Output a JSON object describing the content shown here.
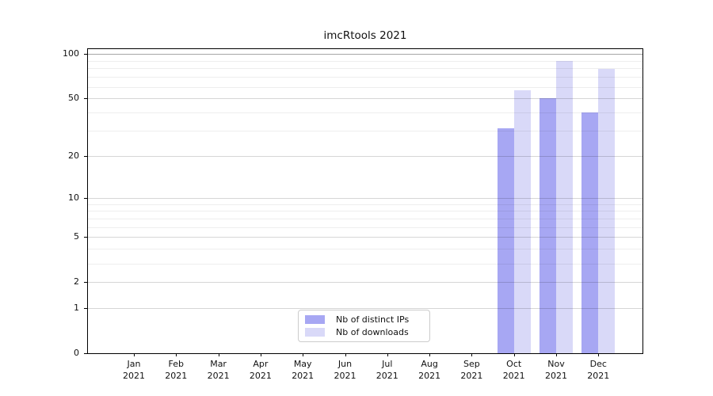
{
  "chart_data": {
    "type": "bar",
    "title": "imcRtools 2021",
    "categories": [
      "Jan 2021",
      "Feb 2021",
      "Mar 2021",
      "Apr 2021",
      "May 2021",
      "Jun 2021",
      "Jul 2021",
      "Aug 2021",
      "Sep 2021",
      "Oct 2021",
      "Nov 2021",
      "Dec 2021"
    ],
    "series": [
      {
        "name": "Nb of distinct IPs",
        "color": "#a7a7f3",
        "values": [
          null,
          null,
          null,
          null,
          null,
          null,
          null,
          null,
          null,
          31,
          50,
          40
        ]
      },
      {
        "name": "Nb of downloads",
        "color": "#d9d9f8",
        "values": [
          null,
          null,
          null,
          null,
          null,
          null,
          null,
          null,
          null,
          57,
          90,
          79
        ]
      }
    ],
    "yscale": "log1p",
    "yticks": [
      0,
      1,
      2,
      5,
      10,
      20,
      50,
      100
    ],
    "yticks_minor": [
      3,
      4,
      6,
      7,
      8,
      9,
      30,
      40,
      60,
      70,
      80,
      90
    ],
    "ylim": [
      0,
      108
    ],
    "grid": "on",
    "legend_position": "bottom-center-inside",
    "xlabel": "",
    "ylabel": ""
  }
}
